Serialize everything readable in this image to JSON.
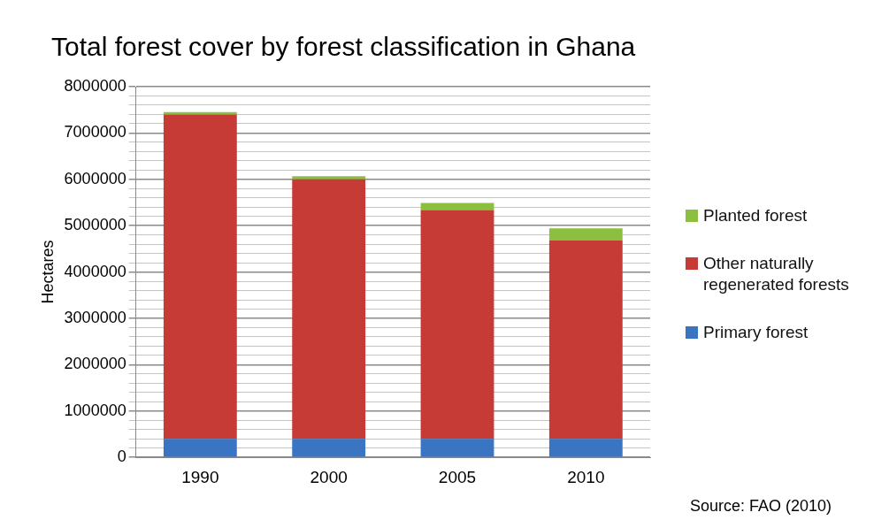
{
  "chart_data": {
    "type": "bar",
    "stacked": true,
    "title": "Total forest cover by forest classification in Ghana",
    "ylabel": "Hectares",
    "categories": [
      "1990",
      "2000",
      "2005",
      "2010"
    ],
    "series": [
      {
        "name": "Primary forest",
        "color": "#3a75c4",
        "values": [
          400000,
          400000,
          400000,
          400000
        ]
      },
      {
        "name": "Other naturally regenerated forests",
        "color": "#c63b36",
        "values": [
          7000000,
          5600000,
          4940000,
          4280000
        ]
      },
      {
        "name": "Planted forest",
        "color": "#8cbf3f",
        "values": [
          50000,
          70000,
          150000,
          260000
        ]
      }
    ],
    "ylim": [
      0,
      8000000
    ],
    "yticks": [
      0,
      {
        "value": 200000,
        "label": null
      },
      {
        "value": 400000,
        "label": null
      },
      {
        "value": 600000,
        "label": null
      },
      {
        "value": 800000,
        "label": null
      },
      1000000,
      {
        "value": 1200000,
        "label": null
      },
      {
        "value": 1400000,
        "label": null
      },
      {
        "value": 1600000,
        "label": null
      },
      {
        "value": 1800000,
        "label": null
      },
      2000000,
      {
        "value": 2200000,
        "label": null
      },
      {
        "value": 2400000,
        "label": null
      },
      {
        "value": 2600000,
        "label": null
      },
      {
        "value": 2800000,
        "label": null
      },
      3000000,
      {
        "value": 3200000,
        "label": null
      },
      {
        "value": 3400000,
        "label": null
      },
      {
        "value": 3600000,
        "label": null
      },
      {
        "value": 3800000,
        "label": null
      },
      4000000,
      {
        "value": 4200000,
        "label": null
      },
      {
        "value": 4400000,
        "label": null
      },
      {
        "value": 4600000,
        "label": null
      },
      {
        "value": 4800000,
        "label": null
      },
      5000000,
      {
        "value": 5200000,
        "label": null
      },
      {
        "value": 5400000,
        "label": null
      },
      {
        "value": 5600000,
        "label": null
      },
      {
        "value": 5800000,
        "label": null
      },
      6000000,
      {
        "value": 6200000,
        "label": null
      },
      {
        "value": 6400000,
        "label": null
      },
      {
        "value": 6600000,
        "label": null
      },
      {
        "value": 6800000,
        "label": null
      },
      7000000,
      {
        "value": 7200000,
        "label": null
      },
      {
        "value": 7400000,
        "label": null
      },
      {
        "value": 7600000,
        "label": null
      },
      {
        "value": 7800000,
        "label": null
      },
      8000000
    ],
    "grid": "y",
    "legend": "right",
    "annotations": [
      "Source: FAO (2010)"
    ]
  }
}
